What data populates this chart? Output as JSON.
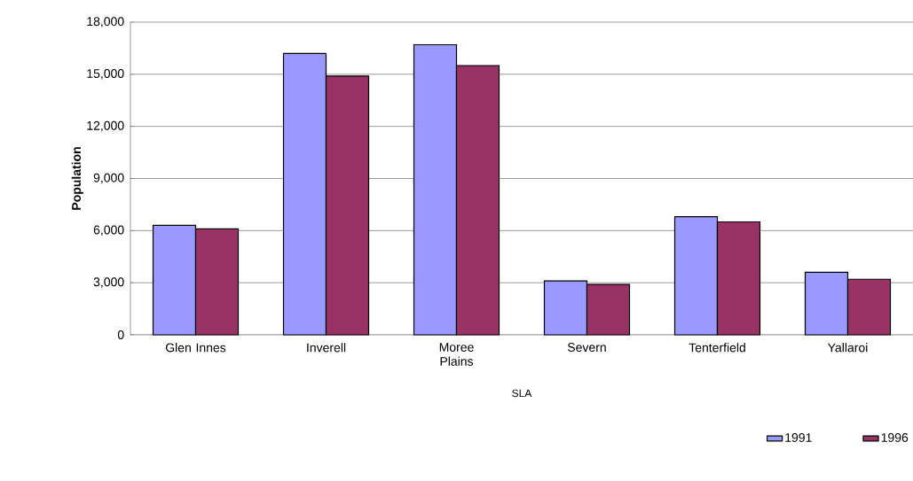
{
  "chart_data": {
    "type": "bar",
    "xlabel": "SLA",
    "ylabel": "Population",
    "categories": [
      "Glen Innes",
      "Inverell",
      "Moree Plains",
      "Severn",
      "Tenterfield",
      "Yallaroi"
    ],
    "series": [
      {
        "name": "1991",
        "color": "#9999ff",
        "values": [
          6300,
          16200,
          16700,
          3100,
          6800,
          3600
        ]
      },
      {
        "name": "1996",
        "color": "#993366",
        "values": [
          6100,
          14900,
          15500,
          2900,
          6500,
          3200
        ]
      }
    ],
    "ylim": [
      0,
      18000
    ],
    "yticks": [
      {
        "value": 0,
        "label": "0"
      },
      {
        "value": 3000,
        "label": "3,000"
      },
      {
        "value": 6000,
        "label": "6,000"
      },
      {
        "value": 9000,
        "label": "9,000"
      },
      {
        "value": 12000,
        "label": "12,000"
      },
      {
        "value": 15000,
        "label": "15,000"
      },
      {
        "value": 18000,
        "label": "18,000"
      }
    ],
    "grid": "y",
    "legend": "bottom right"
  }
}
